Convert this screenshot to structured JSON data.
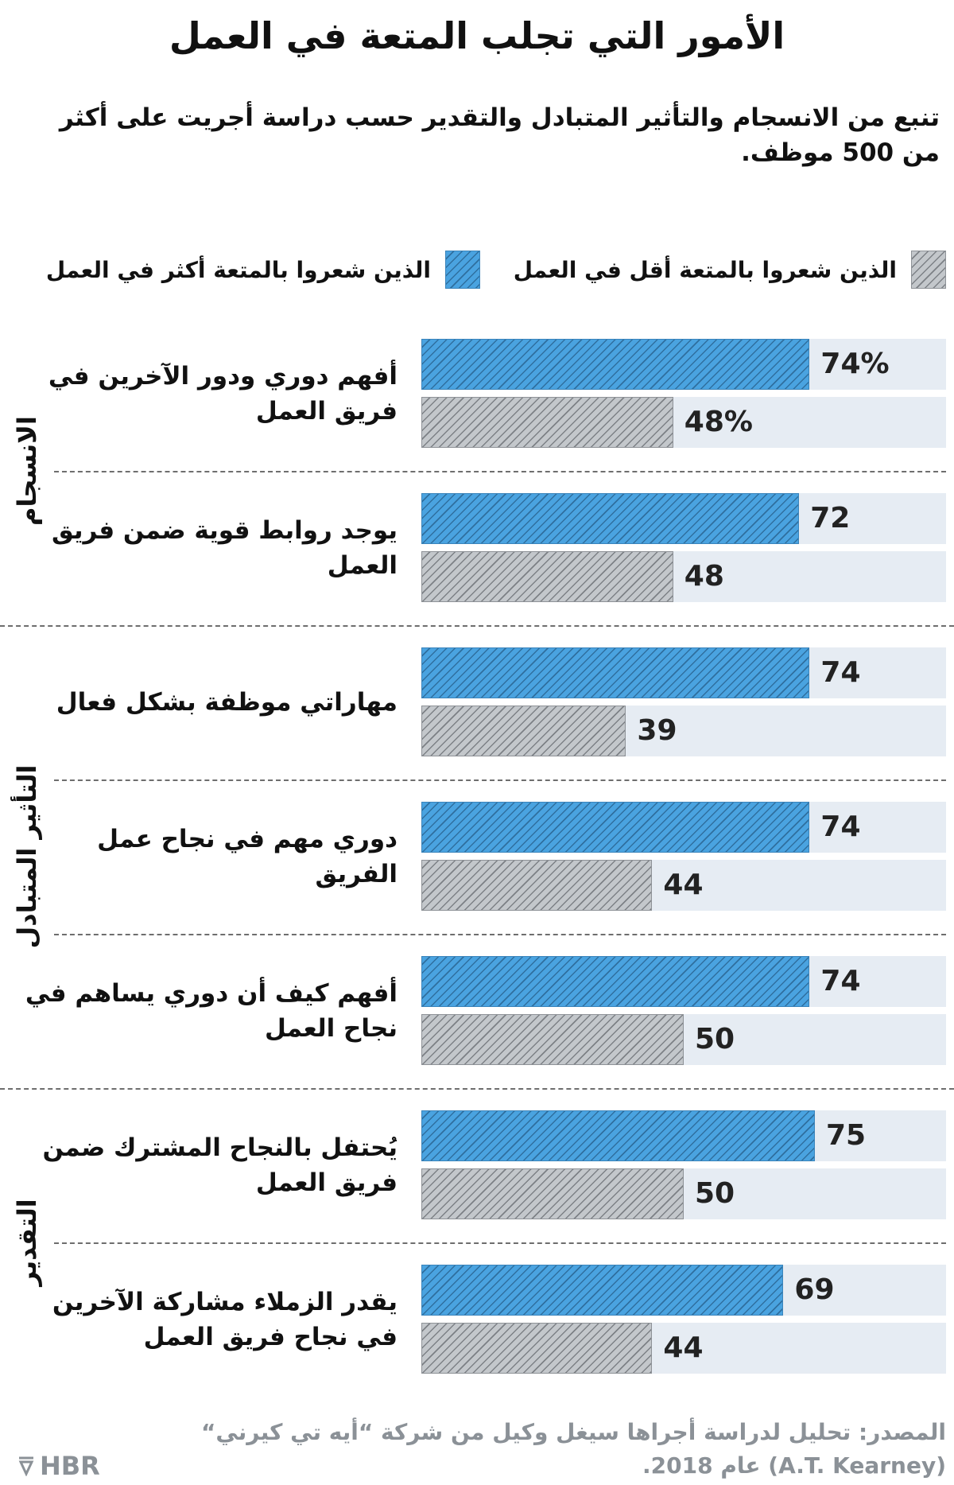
{
  "chart_data": {
    "type": "bar",
    "orientation": "horizontal",
    "title": "الأمور التي تجلب المتعة في العمل",
    "subtitle": "تنبع من الانسجام والتأثير المتبادل والتقدير حسب دراسة أجريت على أكثر من 500 موظف.",
    "xlim": [
      0,
      100
    ],
    "grid": false,
    "legend_placement": "top",
    "legend": [
      {
        "name": "الذين شعروا بالمتعة أقل في العمل",
        "color": "#c3c7cb",
        "pattern": "hatch"
      },
      {
        "name": "الذين شعروا بالمتعة أكثر في العمل",
        "color": "#4aa3e0",
        "pattern": "hatch"
      }
    ],
    "groups": [
      {
        "name": "الانسجام",
        "items": [
          0,
          1
        ]
      },
      {
        "name": "التأثير المتبادل",
        "items": [
          2,
          3,
          4
        ]
      },
      {
        "name": "التقدير",
        "items": [
          5,
          6
        ]
      }
    ],
    "categories": [
      "أفهم دوري ودور الآخرين في فريق العمل",
      "يوجد روابط قوية ضمن فريق العمل",
      "مهاراتي موظفة بشكل فعال",
      "دوري مهم في نجاح عمل الفريق",
      "أفهم كيف أن دوري يساهم في نجاح العمل",
      "يُحتفل بالنجاح المشترك ضمن فريق العمل",
      "يقدر الزملاء مشاركة الآخرين في نجاح فريق العمل"
    ],
    "series": [
      {
        "name": "الذين شعروا بالمتعة أكثر في العمل",
        "values": [
          74,
          72,
          74,
          74,
          74,
          75,
          69
        ],
        "labels": [
          "74%",
          "72",
          "74",
          "74",
          "74",
          "75",
          "69"
        ]
      },
      {
        "name": "الذين شعروا بالمتعة أقل في العمل",
        "values": [
          48,
          48,
          39,
          44,
          50,
          50,
          44
        ],
        "labels": [
          "48%",
          "48",
          "39",
          "44",
          "50",
          "50",
          "44"
        ]
      }
    ]
  },
  "footer": {
    "source_line1": "المصدر: تحليل لدراسة أجراها سيغل وكيل من شركة “أيه تي كيرني“",
    "source_line2": "(A.T. Kearney) عام 2018.",
    "logo": "HBR"
  }
}
